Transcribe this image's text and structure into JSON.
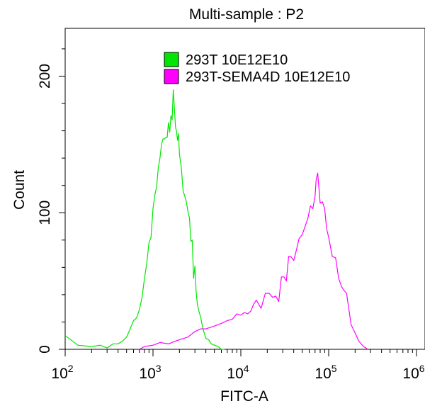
{
  "chart_data": {
    "type": "line",
    "title": "Multi-sample : P2",
    "xlabel": "FITC-A",
    "ylabel": "Count",
    "xscale": "log",
    "xlim": [
      100,
      1000000
    ],
    "ylim": [
      0,
      235
    ],
    "xticks": [
      {
        "value": 100,
        "base": "10",
        "exp": "2"
      },
      {
        "value": 1000,
        "base": "10",
        "exp": "3"
      },
      {
        "value": 10000,
        "base": "10",
        "exp": "4"
      },
      {
        "value": 100000,
        "base": "10",
        "exp": "5"
      },
      {
        "value": 1000000,
        "base": "10",
        "exp": "6"
      }
    ],
    "yticks": [
      0,
      100,
      200
    ],
    "legend_position": "top-center",
    "series": [
      {
        "name": "293T 10E12E10",
        "color": "#00e600",
        "x": [
          100,
          140,
          200,
          250,
          300,
          350,
          400,
          450,
          500,
          550,
          600,
          650,
          700,
          750,
          800,
          850,
          900,
          950,
          1000,
          1050,
          1100,
          1150,
          1200,
          1250,
          1300,
          1350,
          1400,
          1450,
          1500,
          1550,
          1600,
          1650,
          1700,
          1750,
          1800,
          1850,
          1900,
          1950,
          2000,
          2100,
          2200,
          2300,
          2400,
          2500,
          2600,
          2700,
          2800,
          2900,
          3000,
          3100,
          3200,
          3300,
          3500,
          3700,
          4000,
          4300,
          4600,
          5000,
          5500,
          6000,
          6500
        ],
        "y": [
          10,
          3,
          2,
          3,
          1,
          4,
          4,
          6,
          9,
          15,
          21,
          23,
          29,
          38,
          52,
          63,
          78,
          82,
          103,
          113,
          119,
          133,
          140,
          150,
          154,
          154,
          155,
          155,
          166,
          159,
          171,
          168,
          190,
          178,
          163,
          160,
          153,
          158,
          143,
          133,
          116,
          112,
          108,
          101,
          96,
          79,
          80,
          52,
          61,
          42,
          33,
          29,
          23,
          15,
          8,
          7,
          4,
          3,
          2,
          0,
          0
        ]
      },
      {
        "name": "293T-SEMA4D 10E12E10",
        "color": "#ff00ff",
        "x": [
          700,
          800,
          1000,
          1200,
          1500,
          1800,
          2000,
          2500,
          3000,
          3500,
          4000,
          5000,
          6000,
          7000,
          8000,
          9000,
          10000,
          11000,
          12000,
          13000,
          14000,
          15000,
          17000,
          19000,
          21000,
          23000,
          25000,
          27000,
          29000,
          31000,
          33000,
          35000,
          37000,
          40000,
          43000,
          46000,
          50000,
          54000,
          58000,
          62000,
          66000,
          70000,
          72000,
          75000,
          80000,
          85000,
          90000,
          95000,
          100000,
          110000,
          120000,
          130000,
          140000,
          150000,
          160000,
          170000,
          180000,
          200000,
          220000,
          250000,
          280000
        ],
        "y": [
          0,
          2,
          3,
          5,
          4,
          6,
          7,
          9,
          13,
          15,
          15,
          17,
          19,
          21,
          22,
          26,
          25,
          27,
          26,
          28,
          33,
          36,
          30,
          41,
          41,
          38,
          39,
          35,
          53,
          53,
          50,
          68,
          68,
          65,
          73,
          81,
          84,
          90,
          96,
          105,
          103,
          112,
          124,
          129,
          107,
          108,
          103,
          88,
          82,
          68,
          67,
          52,
          46,
          43,
          41,
          29,
          18,
          12,
          6,
          2,
          0
        ]
      }
    ]
  }
}
